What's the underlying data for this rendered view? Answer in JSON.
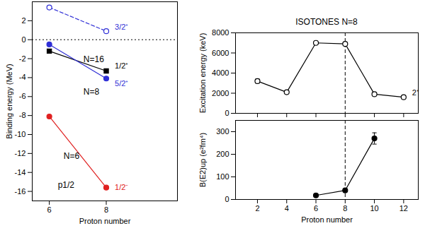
{
  "chart_data": [
    {
      "type": "line",
      "x_label": "Proton number",
      "y_label": "Binding energy (MeV)",
      "x": [
        6,
        8
      ],
      "xlim": [
        5.4,
        10.5
      ],
      "xticks": [
        6,
        8
      ],
      "ylim": [
        -17,
        4
      ],
      "yticks": [
        -16,
        -14,
        -12,
        -10,
        -8,
        -6,
        -4,
        -2,
        0,
        2
      ],
      "series": [
        {
          "name": "3/2⁺",
          "color": "#2f2fd6",
          "marker": "open_circle",
          "line_style": "dashed",
          "values": [
            3.4,
            0.9
          ]
        },
        {
          "name": "1/2⁺",
          "color": "#000000",
          "marker": "square",
          "line_style": "solid",
          "values": [
            -1.2,
            -3.3
          ]
        },
        {
          "name": "5/2⁺",
          "color": "#2f2fd6",
          "marker": "circle",
          "line_style": "solid",
          "values": [
            -0.5,
            -4.1
          ]
        },
        {
          "name": "1/2⁻",
          "color": "#e02020",
          "marker": "circle",
          "line_style": "solid",
          "values": [
            -8.1,
            -15.6
          ]
        }
      ],
      "reference_lines": [
        {
          "axis": "y",
          "value": 0,
          "line_style": "dotted"
        }
      ],
      "annotations": [
        {
          "text": "N=16",
          "x": 7.2,
          "y": -2.1
        },
        {
          "text": "N=8",
          "x": 7.2,
          "y": -5.5
        },
        {
          "text": "N=6",
          "x": 6.5,
          "y": -12.3
        },
        {
          "text": "p1/2",
          "x": 6.3,
          "y": -15.3
        }
      ]
    },
    {
      "type": "line",
      "title": "ISOTONES N=8",
      "y_label": "Excitation energy (keV)",
      "x": [
        2,
        4,
        6,
        8,
        10,
        12
      ],
      "xlim": [
        0.5,
        13
      ],
      "xticks": [
        2,
        4,
        6,
        8,
        10,
        12
      ],
      "ylim": [
        0,
        8000
      ],
      "yticks": [
        0,
        2000,
        4000,
        6000,
        8000
      ],
      "tick_labels": "y",
      "series": [
        {
          "name": "2⁺",
          "color": "#000000",
          "marker": "open_circle",
          "line_style": "solid",
          "values": [
            3200,
            2100,
            7000,
            6900,
            1900,
            1600
          ],
          "errors": [
            200,
            null,
            null,
            null,
            null,
            null
          ]
        }
      ],
      "reference_lines": [
        {
          "axis": "x",
          "value": 8,
          "line_style": "dashed"
        }
      ]
    },
    {
      "type": "line",
      "x_label": "Proton number",
      "y_label": "B(E2)up (e²fm⁴)",
      "x": [
        6,
        8,
        10
      ],
      "xlim": [
        0.5,
        13
      ],
      "xticks": [
        2,
        4,
        6,
        8,
        10,
        12
      ],
      "ylim": [
        0,
        350
      ],
      "yticks": [
        0,
        100,
        200,
        300
      ],
      "series": [
        {
          "color": "#000000",
          "marker": "circle",
          "line_style": "solid",
          "values": [
            18,
            40,
            270
          ],
          "errors": [
            null,
            null,
            25
          ]
        }
      ],
      "reference_lines": [
        {
          "axis": "x",
          "value": 8,
          "line_style": "dashed"
        }
      ]
    }
  ]
}
